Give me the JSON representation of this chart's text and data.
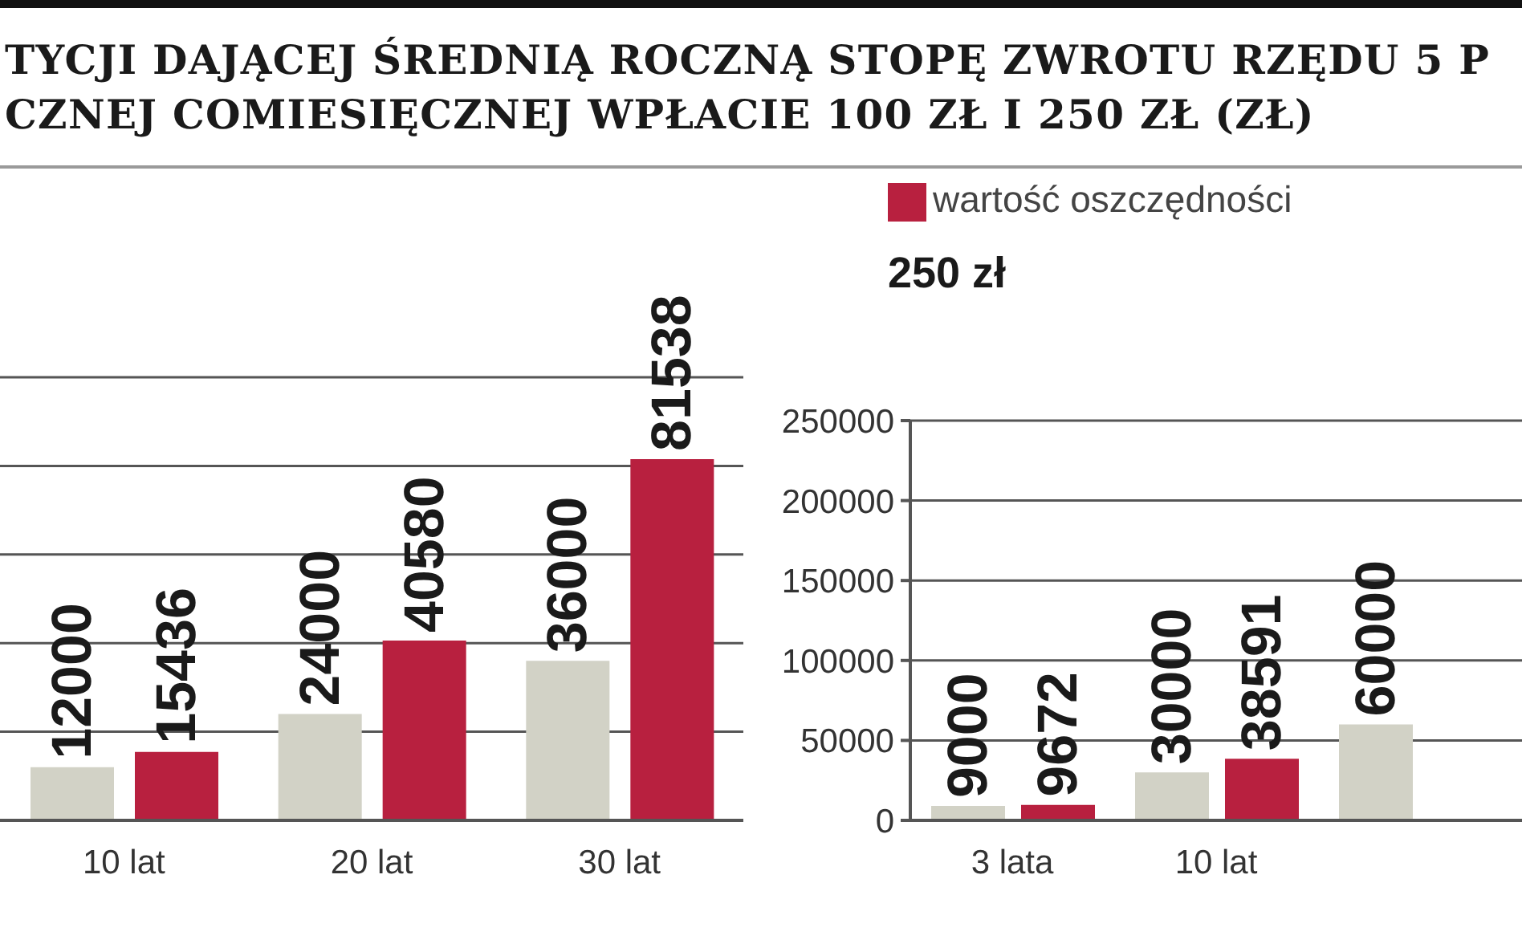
{
  "chart_data": [
    {
      "type": "bar",
      "title": "TYCJI DAJĄCEJ ŚREDNIĄ ROCZNĄ STOPĘ ZWROTU RZĘDU 5 P\nCZNEJ COMIESIĘCZNEJ WPŁACIE 100 ZŁ I 250 ZŁ (ZŁ)",
      "categories": [
        "10 lat",
        "20 lat",
        "30 lat"
      ],
      "series": [
        {
          "color": "#d2d2c6",
          "values": [
            12000,
            24000,
            36000
          ]
        },
        {
          "color": "#b8203f",
          "values": [
            15436,
            40580,
            81538
          ]
        }
      ],
      "ylim": [
        0,
        100000
      ],
      "tick_labels": "x",
      "grid": "y",
      "data_labels": true
    },
    {
      "type": "bar",
      "title": "250 zł",
      "categories": [
        "3 lata",
        "10 lat",
        null
      ],
      "series": [
        {
          "color": "#d2d2c6",
          "values": [
            9000,
            30000,
            60000
          ]
        },
        {
          "name": "wartość oszczędności",
          "color": "#b8203f",
          "values": [
            9672,
            38591,
            null
          ]
        }
      ],
      "ylim": [
        0,
        250000
      ],
      "yticks": [
        0,
        50000,
        100000,
        150000,
        200000,
        250000
      ],
      "grid": "y",
      "legend": "top left",
      "data_labels": true
    }
  ]
}
